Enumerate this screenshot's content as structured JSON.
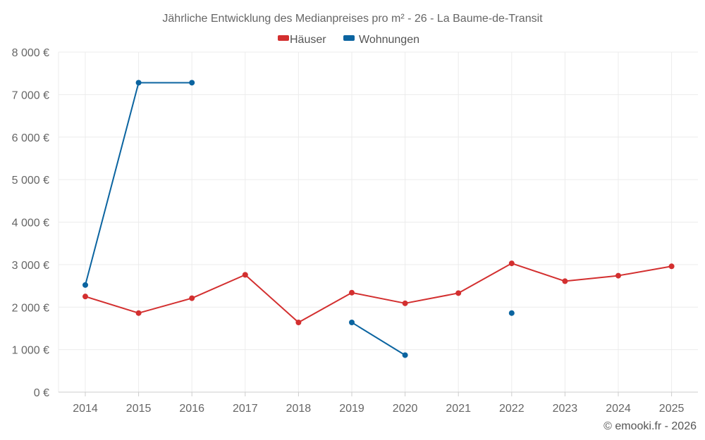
{
  "chart_data": {
    "type": "line",
    "title": "Jährliche Entwicklung des Medianpreises pro m² - 26 - La Baume-de-Transit",
    "categories": [
      "2014",
      "2015",
      "2016",
      "2017",
      "2018",
      "2019",
      "2020",
      "2021",
      "2022",
      "2023",
      "2024",
      "2025"
    ],
    "ylim": [
      0,
      8000
    ],
    "yticks": [
      0,
      1000,
      2000,
      3000,
      4000,
      5000,
      6000,
      7000,
      8000
    ],
    "ytick_labels": [
      "0 €",
      "1 000 €",
      "2 000 €",
      "3 000 €",
      "4 000 €",
      "5 000 €",
      "6 000 €",
      "7 000 €",
      "8 000 €"
    ],
    "grid": true,
    "legend_position": "top-center",
    "series": [
      {
        "name": "Häuser",
        "color": "#d32f2f",
        "values": [
          2250,
          1860,
          2210,
          2760,
          1640,
          2340,
          2090,
          2330,
          3030,
          2610,
          2740,
          2960
        ]
      },
      {
        "name": "Wohnungen",
        "color": "#0b64a0",
        "values": [
          2520,
          7280,
          7280,
          null,
          null,
          1640,
          870,
          null,
          1860,
          null,
          null,
          null
        ]
      }
    ]
  },
  "credit": "© emooki.fr - 2026"
}
